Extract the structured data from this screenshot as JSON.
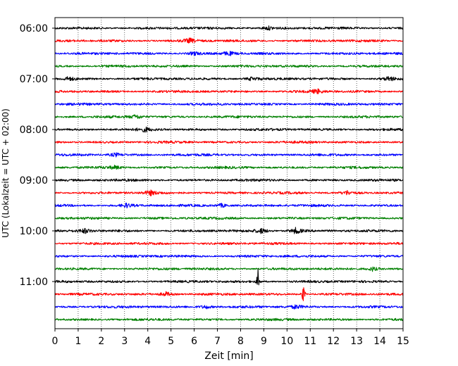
{
  "chart_data": {
    "type": "line",
    "subtype": "helicorder-seismogram",
    "title": "",
    "xlabel": "Zeit  [min]",
    "ylabel": "UTC (Lokalzeit = UTC + 02:00)",
    "xlim": [
      0,
      15
    ],
    "x_ticks": [
      0,
      1,
      2,
      3,
      4,
      5,
      6,
      7,
      8,
      9,
      10,
      11,
      12,
      13,
      14,
      15
    ],
    "x_tick_labels": [
      "0",
      "1",
      "2",
      "3",
      "4",
      "5",
      "6",
      "7",
      "8",
      "9",
      "10",
      "11",
      "12",
      "13",
      "14",
      "15"
    ],
    "grid": "vertical-dotted",
    "row_minutes": 15,
    "row_count": 24,
    "start_time": "06:00",
    "y_tick_labels": [
      "06:00",
      "07:00",
      "08:00",
      "09:00",
      "10:00",
      "11:00"
    ],
    "y_tick_rows": [
      0,
      4,
      8,
      12,
      16,
      20
    ],
    "series_colors": [
      "#000000",
      "#ff0000",
      "#0000ff",
      "#008000"
    ],
    "events": [
      {
        "row": 0,
        "minute": 9.2,
        "amplitude": 0.25
      },
      {
        "row": 1,
        "minute": 5.8,
        "amplitude": 0.35
      },
      {
        "row": 2,
        "minute": 6.0,
        "amplitude": 0.3
      },
      {
        "row": 2,
        "minute": 7.5,
        "amplitude": 0.3
      },
      {
        "row": 4,
        "minute": 0.6,
        "amplitude": 0.3
      },
      {
        "row": 4,
        "minute": 8.5,
        "amplitude": 0.3
      },
      {
        "row": 4,
        "minute": 14.4,
        "amplitude": 0.35
      },
      {
        "row": 5,
        "minute": 11.3,
        "amplitude": 0.35
      },
      {
        "row": 7,
        "minute": 3.5,
        "amplitude": 0.35
      },
      {
        "row": 8,
        "minute": 3.9,
        "amplitude": 0.3
      },
      {
        "row": 10,
        "minute": 2.6,
        "amplitude": 0.3
      },
      {
        "row": 11,
        "minute": 2.6,
        "amplitude": 0.25
      },
      {
        "row": 13,
        "minute": 4.1,
        "amplitude": 0.35
      },
      {
        "row": 13,
        "minute": 12.6,
        "amplitude": 0.3
      },
      {
        "row": 14,
        "minute": 3.1,
        "amplitude": 0.3
      },
      {
        "row": 14,
        "minute": 7.2,
        "amplitude": 0.3
      },
      {
        "row": 16,
        "minute": 1.3,
        "amplitude": 0.35
      },
      {
        "row": 16,
        "minute": 8.9,
        "amplitude": 0.35
      },
      {
        "row": 16,
        "minute": 10.4,
        "amplitude": 0.55
      },
      {
        "row": 19,
        "minute": 13.7,
        "amplitude": 0.35
      },
      {
        "row": 20,
        "minute": 8.75,
        "amplitude": 1.9
      },
      {
        "row": 21,
        "minute": 4.8,
        "amplitude": 0.35
      },
      {
        "row": 21,
        "minute": 10.7,
        "amplitude": 1.7
      },
      {
        "row": 22,
        "minute": 6.5,
        "amplitude": 0.3
      },
      {
        "row": 22,
        "minute": 10.4,
        "amplitude": 0.3
      }
    ]
  }
}
